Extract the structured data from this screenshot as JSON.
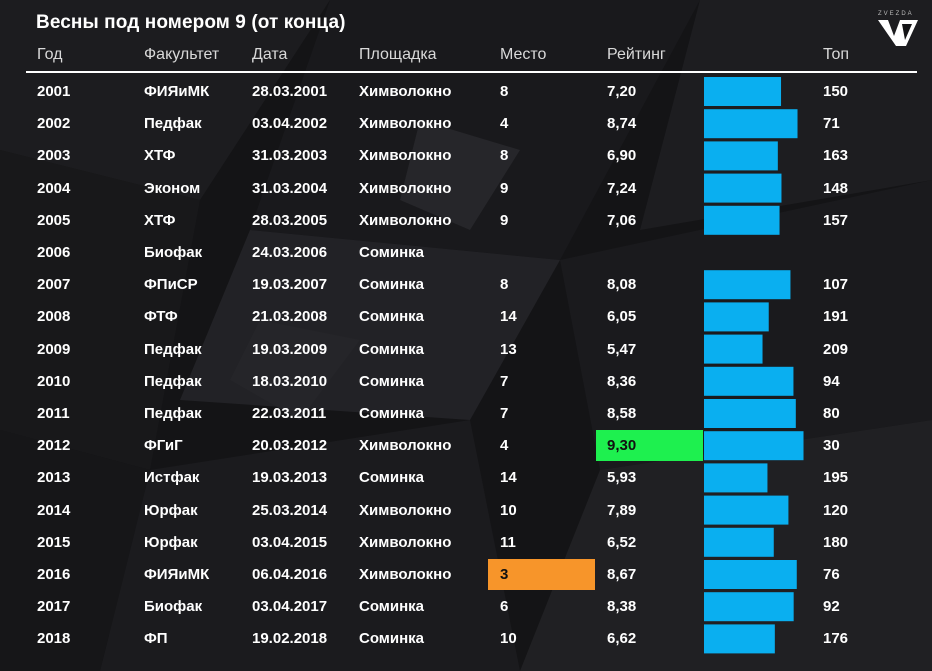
{
  "title": "Весны под номером 9 (от конца)",
  "headers": {
    "year": "Год",
    "faculty": "Факультет",
    "date": "Дата",
    "venue": "Площадка",
    "place": "Место",
    "rating": "Рейтинг",
    "top": "Топ"
  },
  "logo_text": "ZVEZDA",
  "colors": {
    "bar": "#0aaff0",
    "best_rating_highlight": "#1ef04f",
    "best_place_highlight": "#f7952a",
    "background": "#141416",
    "text": "#ffffff"
  },
  "chart_data": {
    "type": "table",
    "rating_bar_max": 10,
    "rows": [
      {
        "year": "2001",
        "faculty": "ФИЯиМК",
        "date": "28.03.2001",
        "venue": "Химволокно",
        "place": "8",
        "rating": "7,20",
        "rating_value": 7.2,
        "top": "150"
      },
      {
        "year": "2002",
        "faculty": "Педфак",
        "date": "03.04.2002",
        "venue": "Химволокно",
        "place": "4",
        "rating": "8,74",
        "rating_value": 8.74,
        "top": "71"
      },
      {
        "year": "2003",
        "faculty": "ХТФ",
        "date": "31.03.2003",
        "venue": "Химволокно",
        "place": "8",
        "rating": "6,90",
        "rating_value": 6.9,
        "top": "163"
      },
      {
        "year": "2004",
        "faculty": "Эконом",
        "date": "31.03.2004",
        "venue": "Химволокно",
        "place": "9",
        "rating": "7,24",
        "rating_value": 7.24,
        "top": "148"
      },
      {
        "year": "2005",
        "faculty": "ХТФ",
        "date": "28.03.2005",
        "venue": "Химволокно",
        "place": "9",
        "rating": "7,06",
        "rating_value": 7.06,
        "top": "157"
      },
      {
        "year": "2006",
        "faculty": "Биофак",
        "date": "24.03.2006",
        "venue": "Соминка",
        "place": "",
        "rating": "",
        "rating_value": null,
        "top": ""
      },
      {
        "year": "2007",
        "faculty": "ФПиСР",
        "date": "19.03.2007",
        "venue": "Соминка",
        "place": "8",
        "rating": "8,08",
        "rating_value": 8.08,
        "top": "107"
      },
      {
        "year": "2008",
        "faculty": "ФТФ",
        "date": "21.03.2008",
        "venue": "Соминка",
        "place": "14",
        "rating": "6,05",
        "rating_value": 6.05,
        "top": "191"
      },
      {
        "year": "2009",
        "faculty": "Педфак",
        "date": "19.03.2009",
        "venue": "Соминка",
        "place": "13",
        "rating": "5,47",
        "rating_value": 5.47,
        "top": "209"
      },
      {
        "year": "2010",
        "faculty": "Педфак",
        "date": "18.03.2010",
        "venue": "Соминка",
        "place": "7",
        "rating": "8,36",
        "rating_value": 8.36,
        "top": "94"
      },
      {
        "year": "2011",
        "faculty": "Педфак",
        "date": "22.03.2011",
        "venue": "Соминка",
        "place": "7",
        "rating": "8,58",
        "rating_value": 8.58,
        "top": "80"
      },
      {
        "year": "2012",
        "faculty": "ФГиГ",
        "date": "20.03.2012",
        "venue": "Химволокно",
        "place": "4",
        "rating": "9,30",
        "rating_value": 9.3,
        "top": "30",
        "highlight_rating": true
      },
      {
        "year": "2013",
        "faculty": "Истфак",
        "date": "19.03.2013",
        "venue": "Соминка",
        "place": "14",
        "rating": "5,93",
        "rating_value": 5.93,
        "top": "195"
      },
      {
        "year": "2014",
        "faculty": "Юрфак",
        "date": "25.03.2014",
        "venue": "Химволокно",
        "place": "10",
        "rating": "7,89",
        "rating_value": 7.89,
        "top": "120"
      },
      {
        "year": "2015",
        "faculty": "Юрфак",
        "date": "03.04.2015",
        "venue": "Химволокно",
        "place": "11",
        "rating": "6,52",
        "rating_value": 6.52,
        "top": "180"
      },
      {
        "year": "2016",
        "faculty": "ФИЯиМК",
        "date": "06.04.2016",
        "venue": "Химволокно",
        "place": "3",
        "rating": "8,67",
        "rating_value": 8.67,
        "top": "76",
        "highlight_place": true
      },
      {
        "year": "2017",
        "faculty": "Биофак",
        "date": "03.04.2017",
        "venue": "Соминка",
        "place": "6",
        "rating": "8,38",
        "rating_value": 8.38,
        "top": "92"
      },
      {
        "year": "2018",
        "faculty": "ФП",
        "date": "19.02.2018",
        "venue": "Соминка",
        "place": "10",
        "rating": "6,62",
        "rating_value": 6.62,
        "top": "176"
      }
    ]
  }
}
